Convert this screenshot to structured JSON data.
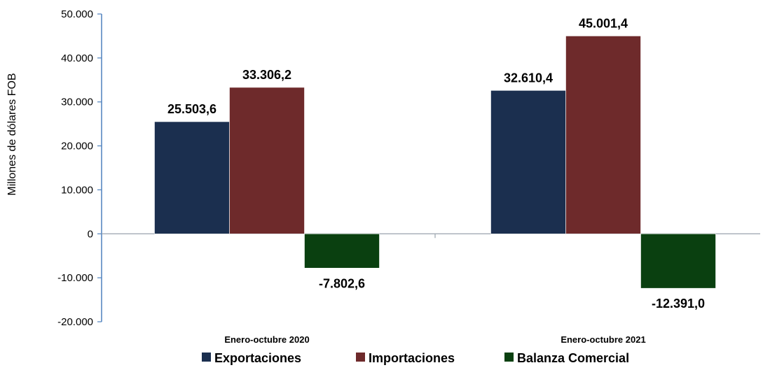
{
  "chart_data": {
    "type": "bar",
    "title": "",
    "xlabel": "",
    "ylabel": "Millones de dólares FOB",
    "ylim": [
      -20000,
      50000
    ],
    "yticks": [
      50000,
      40000,
      30000,
      20000,
      10000,
      0,
      -10000,
      -20000
    ],
    "ytick_labels": [
      "50.000",
      "40.000",
      "30.000",
      "20.000",
      "10.000",
      "0",
      "-10.000",
      "-20.000"
    ],
    "categories": [
      "Enero-octubre 2020",
      "Enero-octubre 2021"
    ],
    "grid": false,
    "legend_position": "bottom",
    "series": [
      {
        "name": "Exportaciones",
        "color": "#1b2f4f",
        "values": [
          25503.6,
          32610.4
        ],
        "labels": [
          "25.503,6",
          "32.610,4"
        ]
      },
      {
        "name": "Importaciones",
        "color": "#6e2a2b",
        "values": [
          33306.2,
          45001.4
        ],
        "labels": [
          "33.306,2",
          "45.001,4"
        ]
      },
      {
        "name": "Balanza Comercial",
        "color": "#0a4010",
        "values": [
          -7802.6,
          -12391.0
        ],
        "labels": [
          "-7.802,6",
          "-12.391,0"
        ]
      }
    ]
  }
}
